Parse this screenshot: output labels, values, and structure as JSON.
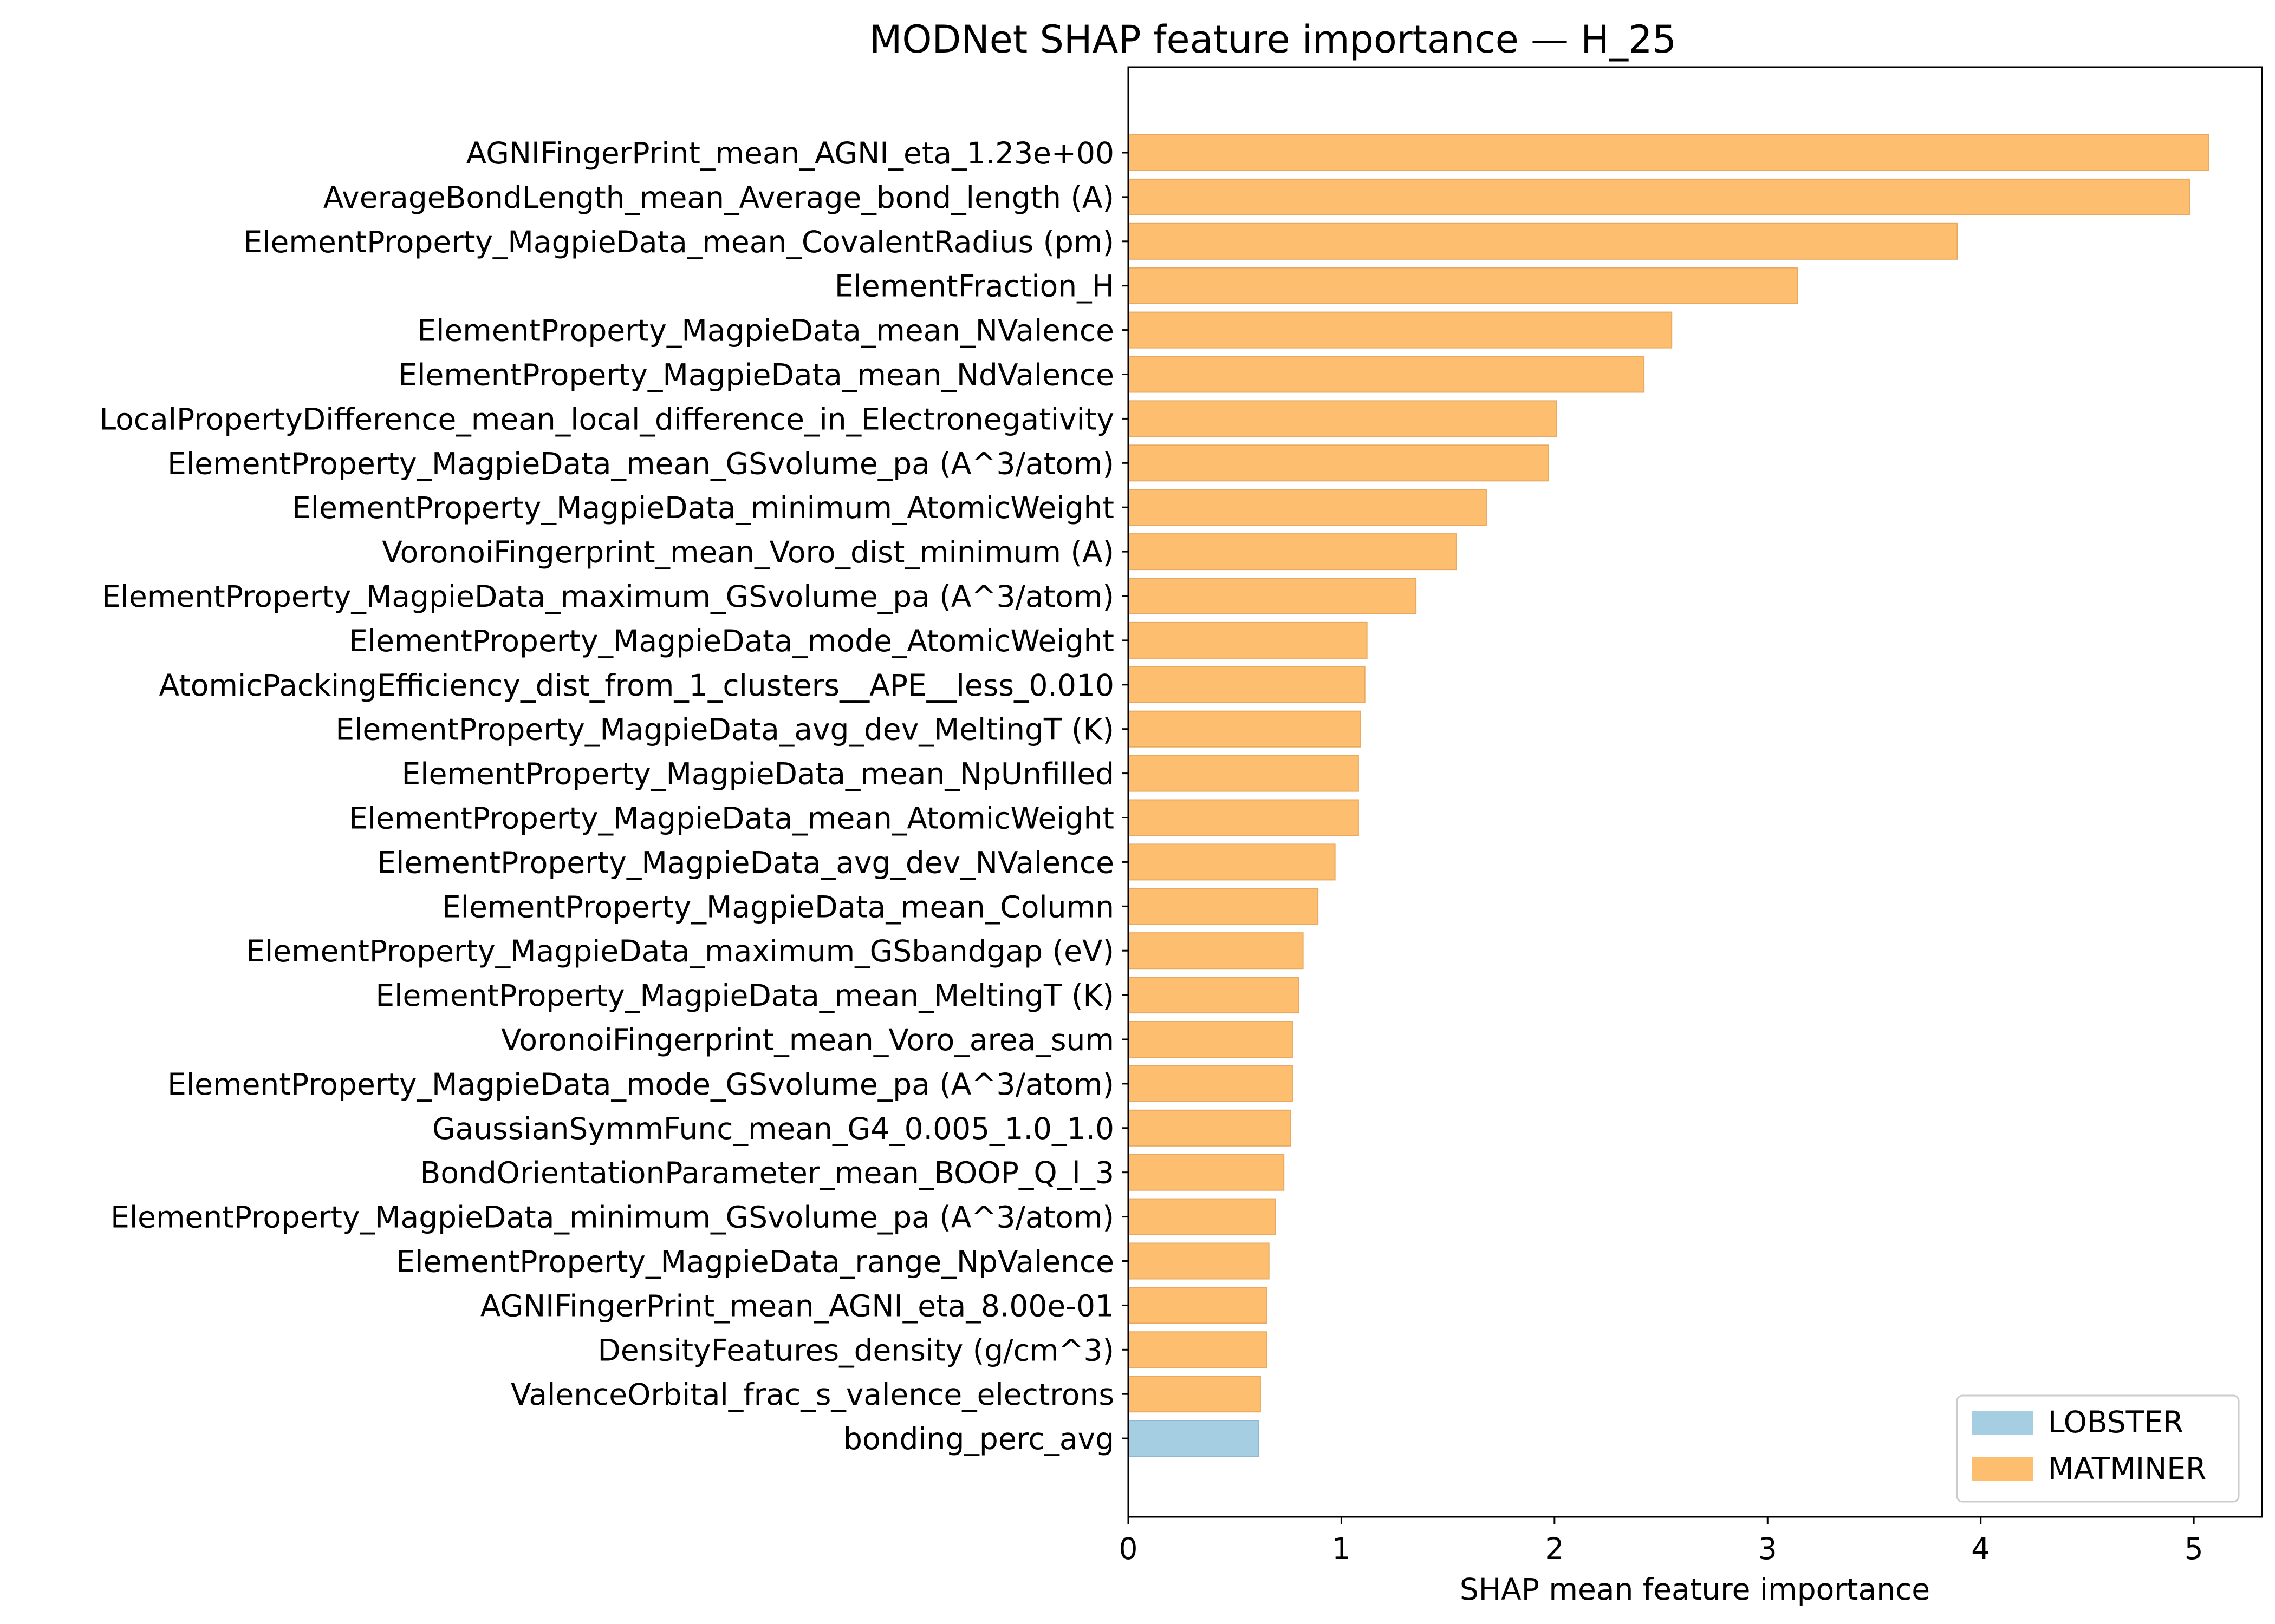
{
  "chart_data": {
    "type": "bar",
    "orientation": "horizontal",
    "title": "MODNet SHAP feature importance — H_25",
    "xlabel": "SHAP mean feature importance",
    "ylabel": "",
    "xlim": [
      0,
      5.32
    ],
    "xticks": [
      0,
      1,
      2,
      3,
      4,
      5
    ],
    "colors": {
      "LOBSTER": "#a6cee3",
      "MATMINER": "#fdbf6f"
    },
    "edge_color": "#e8a860",
    "legend": {
      "location": "lower-right",
      "entries": [
        {
          "label": "LOBSTER",
          "color": "#a6cee3"
        },
        {
          "label": "MATMINER",
          "color": "#fdbf6f"
        }
      ]
    },
    "bars": [
      {
        "label": "AGNIFingerPrint_mean_AGNI_eta_1.23e+00",
        "value": 5.07,
        "group": "MATMINER"
      },
      {
        "label": "AverageBondLength_mean_Average_bond_length (A)",
        "value": 4.98,
        "group": "MATMINER"
      },
      {
        "label": "ElementProperty_MagpieData_mean_CovalentRadius (pm)",
        "value": 3.89,
        "group": "MATMINER"
      },
      {
        "label": "ElementFraction_H",
        "value": 3.14,
        "group": "MATMINER"
      },
      {
        "label": "ElementProperty_MagpieData_mean_NValence",
        "value": 2.55,
        "group": "MATMINER"
      },
      {
        "label": "ElementProperty_MagpieData_mean_NdValence",
        "value": 2.42,
        "group": "MATMINER"
      },
      {
        "label": "LocalPropertyDifference_mean_local_difference_in_Electronegativity",
        "value": 2.01,
        "group": "MATMINER"
      },
      {
        "label": "ElementProperty_MagpieData_mean_GSvolume_pa (A^3/atom)",
        "value": 1.97,
        "group": "MATMINER"
      },
      {
        "label": "ElementProperty_MagpieData_minimum_AtomicWeight",
        "value": 1.68,
        "group": "MATMINER"
      },
      {
        "label": "VoronoiFingerprint_mean_Voro_dist_minimum (A)",
        "value": 1.54,
        "group": "MATMINER"
      },
      {
        "label": "ElementProperty_MagpieData_maximum_GSvolume_pa (A^3/atom)",
        "value": 1.35,
        "group": "MATMINER"
      },
      {
        "label": "ElementProperty_MagpieData_mode_AtomicWeight",
        "value": 1.12,
        "group": "MATMINER"
      },
      {
        "label": "AtomicPackingEfficiency_dist_from_1_clusters__APE__less_0.010",
        "value": 1.11,
        "group": "MATMINER"
      },
      {
        "label": "ElementProperty_MagpieData_avg_dev_MeltingT (K)",
        "value": 1.09,
        "group": "MATMINER"
      },
      {
        "label": "ElementProperty_MagpieData_mean_NpUnfilled",
        "value": 1.08,
        "group": "MATMINER"
      },
      {
        "label": "ElementProperty_MagpieData_mean_AtomicWeight",
        "value": 1.08,
        "group": "MATMINER"
      },
      {
        "label": "ElementProperty_MagpieData_avg_dev_NValence",
        "value": 0.97,
        "group": "MATMINER"
      },
      {
        "label": "ElementProperty_MagpieData_mean_Column",
        "value": 0.89,
        "group": "MATMINER"
      },
      {
        "label": "ElementProperty_MagpieData_maximum_GSbandgap (eV)",
        "value": 0.82,
        "group": "MATMINER"
      },
      {
        "label": "ElementProperty_MagpieData_mean_MeltingT (K)",
        "value": 0.8,
        "group": "MATMINER"
      },
      {
        "label": "VoronoiFingerprint_mean_Voro_area_sum",
        "value": 0.77,
        "group": "MATMINER"
      },
      {
        "label": "ElementProperty_MagpieData_mode_GSvolume_pa (A^3/atom)",
        "value": 0.77,
        "group": "MATMINER"
      },
      {
        "label": "GaussianSymmFunc_mean_G4_0.005_1.0_1.0",
        "value": 0.76,
        "group": "MATMINER"
      },
      {
        "label": "BondOrientationParameter_mean_BOOP_Q_l_3",
        "value": 0.73,
        "group": "MATMINER"
      },
      {
        "label": "ElementProperty_MagpieData_minimum_GSvolume_pa (A^3/atom)",
        "value": 0.69,
        "group": "MATMINER"
      },
      {
        "label": "ElementProperty_MagpieData_range_NpValence",
        "value": 0.66,
        "group": "MATMINER"
      },
      {
        "label": "AGNIFingerPrint_mean_AGNI_eta_8.00e-01",
        "value": 0.65,
        "group": "MATMINER"
      },
      {
        "label": "DensityFeatures_density (g/cm^3)",
        "value": 0.65,
        "group": "MATMINER"
      },
      {
        "label": "ValenceOrbital_frac_s_valence_electrons",
        "value": 0.62,
        "group": "MATMINER"
      },
      {
        "label": "bonding_perc_avg",
        "value": 0.61,
        "group": "LOBSTER"
      }
    ]
  }
}
